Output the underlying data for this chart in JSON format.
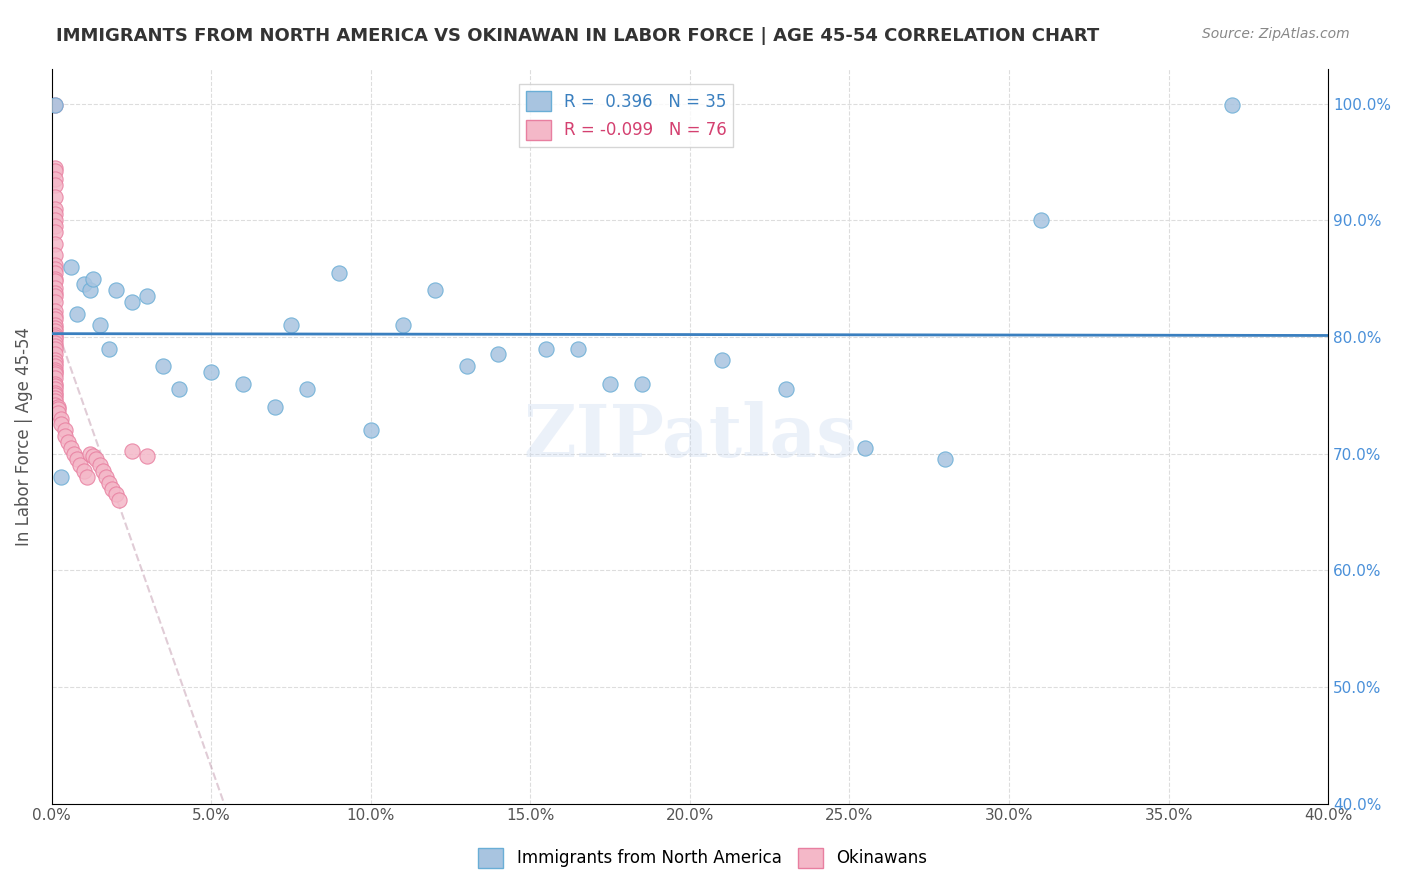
{
  "title": "IMMIGRANTS FROM NORTH AMERICA VS OKINAWAN IN LABOR FORCE | AGE 45-54 CORRELATION CHART",
  "source": "Source: ZipAtlas.com",
  "xlabel": "",
  "ylabel": "In Labor Force | Age 45-54",
  "legend_labels": [
    "Immigrants from North America",
    "Okinawans"
  ],
  "r_blue": 0.396,
  "n_blue": 35,
  "r_pink": -0.099,
  "n_pink": 76,
  "blue_color": "#a8c4e0",
  "blue_edge": "#6aaed6",
  "pink_color": "#f4b8c8",
  "pink_edge": "#e87fa0",
  "trend_blue": "#3a7fbf",
  "trend_pink": "#d0a0b0",
  "watermark": "ZIPatlas",
  "xlim": [
    0.0,
    0.4
  ],
  "ylim": [
    0.4,
    1.03
  ],
  "xticks": [
    0.0,
    0.05,
    0.1,
    0.15,
    0.2,
    0.25,
    0.3,
    0.35,
    0.4
  ],
  "yticks": [
    0.4,
    0.5,
    0.6,
    0.7,
    0.8,
    0.9,
    1.0
  ],
  "blue_scatter_x": [
    0.001,
    0.003,
    0.006,
    0.008,
    0.01,
    0.012,
    0.013,
    0.015,
    0.018,
    0.02,
    0.025,
    0.03,
    0.035,
    0.04,
    0.05,
    0.06,
    0.07,
    0.075,
    0.08,
    0.09,
    0.1,
    0.11,
    0.12,
    0.13,
    0.14,
    0.155,
    0.165,
    0.175,
    0.185,
    0.21,
    0.23,
    0.255,
    0.28,
    0.31,
    0.37
  ],
  "blue_scatter_y": [
    0.999,
    0.68,
    0.86,
    0.82,
    0.845,
    0.84,
    0.85,
    0.81,
    0.79,
    0.84,
    0.83,
    0.835,
    0.775,
    0.755,
    0.77,
    0.76,
    0.74,
    0.81,
    0.755,
    0.855,
    0.72,
    0.81,
    0.84,
    0.775,
    0.785,
    0.79,
    0.79,
    0.76,
    0.76,
    0.78,
    0.755,
    0.705,
    0.695,
    0.9,
    0.999
  ],
  "pink_scatter_x": [
    0.001,
    0.001,
    0.001,
    0.001,
    0.001,
    0.001,
    0.001,
    0.001,
    0.001,
    0.001,
    0.001,
    0.001,
    0.001,
    0.001,
    0.001,
    0.001,
    0.001,
    0.001,
    0.001,
    0.001,
    0.001,
    0.001,
    0.001,
    0.001,
    0.001,
    0.001,
    0.001,
    0.001,
    0.001,
    0.001,
    0.001,
    0.001,
    0.001,
    0.001,
    0.001,
    0.001,
    0.001,
    0.001,
    0.001,
    0.001,
    0.001,
    0.001,
    0.001,
    0.001,
    0.001,
    0.001,
    0.001,
    0.001,
    0.001,
    0.001,
    0.002,
    0.002,
    0.002,
    0.003,
    0.003,
    0.004,
    0.004,
    0.005,
    0.006,
    0.007,
    0.008,
    0.009,
    0.01,
    0.011,
    0.012,
    0.013,
    0.014,
    0.015,
    0.016,
    0.017,
    0.018,
    0.019,
    0.02,
    0.021,
    0.025,
    0.03
  ],
  "pink_scatter_y": [
    0.999,
    0.945,
    0.942,
    0.935,
    0.93,
    0.92,
    0.91,
    0.905,
    0.9,
    0.895,
    0.89,
    0.88,
    0.87,
    0.862,
    0.858,
    0.855,
    0.85,
    0.848,
    0.842,
    0.838,
    0.835,
    0.83,
    0.822,
    0.818,
    0.815,
    0.81,
    0.808,
    0.805,
    0.802,
    0.8,
    0.798,
    0.795,
    0.792,
    0.79,
    0.785,
    0.78,
    0.778,
    0.775,
    0.772,
    0.77,
    0.768,
    0.765,
    0.76,
    0.758,
    0.755,
    0.752,
    0.75,
    0.748,
    0.745,
    0.742,
    0.74,
    0.738,
    0.735,
    0.73,
    0.725,
    0.72,
    0.715,
    0.71,
    0.705,
    0.7,
    0.695,
    0.69,
    0.685,
    0.68,
    0.7,
    0.698,
    0.695,
    0.69,
    0.685,
    0.68,
    0.675,
    0.67,
    0.665,
    0.66,
    0.702,
    0.698
  ],
  "background_color": "#ffffff",
  "grid_color": "#dddddd"
}
